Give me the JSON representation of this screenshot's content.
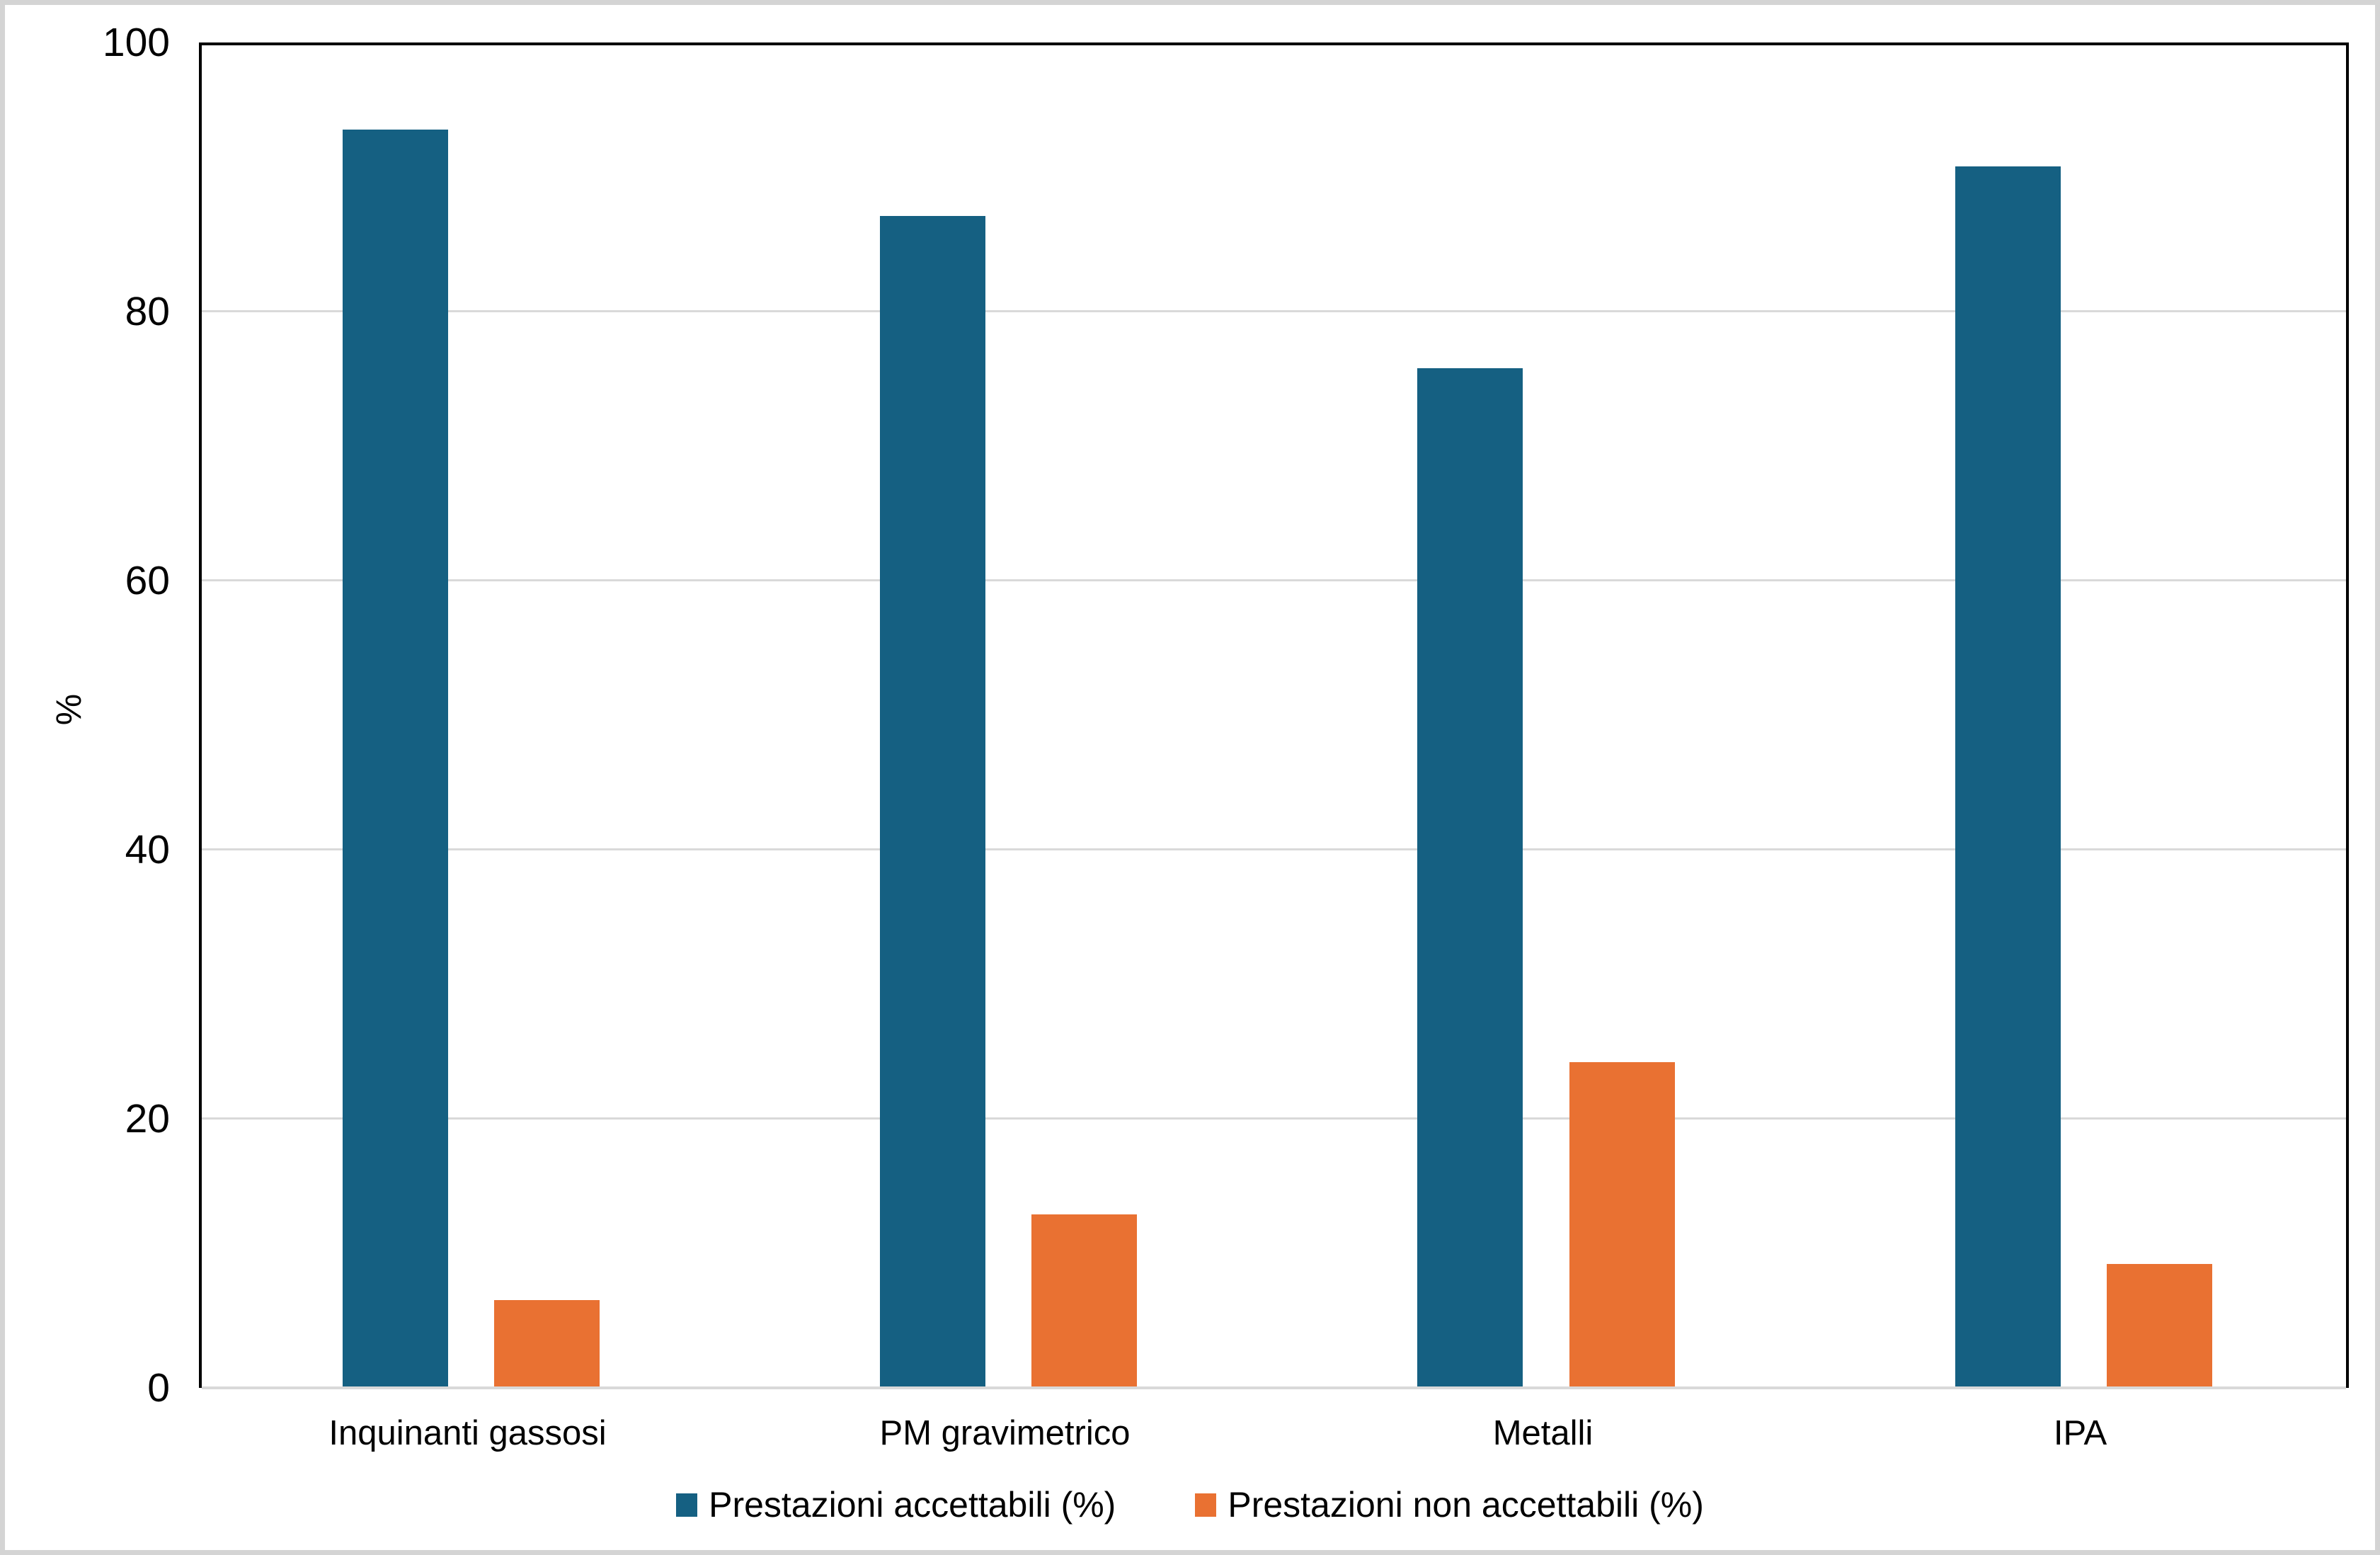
{
  "chart_data": {
    "type": "bar",
    "title": "",
    "xlabel": "",
    "ylabel": "%",
    "categories": [
      "Inquinanti gassosi",
      "PM gravimetrico",
      "Metalli",
      "IPA"
    ],
    "series": [
      {
        "name": "Prestazioni accettabili (%)",
        "color": "#156082",
        "values": [
          93.5,
          87.1,
          75.8,
          90.8
        ]
      },
      {
        "name": "Prestazioni non accettabili (%)",
        "color": "#E97132",
        "values": [
          6.5,
          12.9,
          24.2,
          9.2
        ]
      }
    ],
    "ylim": [
      0,
      100
    ],
    "yticks": [
      0,
      20,
      40,
      60,
      80,
      100
    ],
    "grid": true,
    "legend_position": "bottom"
  },
  "colors": {
    "gridline": "#D9D9D9",
    "x_axis_line": "#D9D9D9",
    "plot_border": "#000000",
    "text": "#000000",
    "canvas_border": "#D4D4D4",
    "background": "#FFFFFF"
  }
}
